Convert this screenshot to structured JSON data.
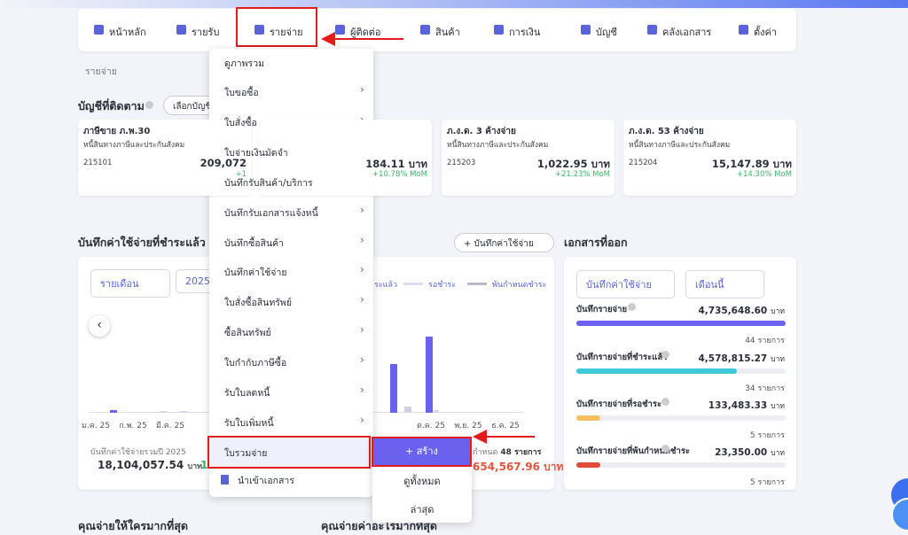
{
  "nav": {
    "items": [
      "หน้าหลัก",
      "รายรับ",
      "รายจ่าย",
      "ผู้ติดต่อ",
      "สินค้า",
      "การเงิน",
      "บัญชี",
      "คลังเอกสาร",
      "ตั้งค่า"
    ]
  },
  "breadcrumb": "รายจ่าย",
  "watch": {
    "title": "บัญชีที่ติดตาม",
    "select": "เลือกบัญชี",
    "cards": [
      {
        "title": "ภาษีขาย ภ.พ.30",
        "subtitle": "หนี้สินทางภาษีและประกันสังคม",
        "code": "215101",
        "amount": "209,072",
        "change": "+1"
      },
      {
        "amount": "184.11 บาท",
        "change": "+10.78% MoM"
      },
      {
        "title": "ภ.ง.ด. 3 ค้างจ่าย",
        "subtitle": "หนี้สินทางภาษีและประกันสังคม",
        "code": "215203",
        "amount": "1,022.95 บาท",
        "change": "+21.23% MoM"
      },
      {
        "title": "ภ.ง.ด. 53 ค้างจ่าย",
        "subtitle": "หนี้สินทางภาษีและประกันสังคม",
        "code": "215204",
        "amount": "15,147.89 บาท",
        "change": "+14.30% MoM"
      }
    ]
  },
  "expense": {
    "title": "บันทึกค่าใช้จ่ายที่ชำระแล้ว รอชำ",
    "add_button": "+ บันทึกค่าใช้จ่าย",
    "period": "รายเดือน",
    "year": "2025",
    "legend": [
      "ระแล้ว",
      "รอชำระ",
      "พ้นกำหนดชำระ"
    ],
    "months": [
      "ม.ค. 25",
      "ก.พ. 25",
      "มี.ค. 25",
      "ต.ค. 25",
      "พ.ย. 25",
      "ธ.ค. 25"
    ],
    "total_label": "บันทึกค่าใช้จ่ายรวมปี 2025",
    "total": "18,104,057.54",
    "unit": "บาท",
    "partial": "16",
    "overdue_label": "กำหนด",
    "overdue_count": "48 รายการ",
    "overdue_total": "654,567.96 บาท"
  },
  "docs": {
    "title": "เอกสารที่ออก",
    "type_select": "บันทึกค่าใช้จ่าย",
    "period_select": "เดือนนี้",
    "rows": [
      {
        "label": "บันทึกรายจ่าย",
        "amount": "4,735,648.60",
        "unit": "บาท",
        "count": "44 รายการ"
      },
      {
        "label": "บันทึกรายจ่ายที่ชำระแล้ว",
        "amount": "4,578,815.27",
        "unit": "บาท",
        "count": "34 รายการ"
      },
      {
        "label": "บันทึกรายจ่ายที่รอชำระ",
        "amount": "133,483.33",
        "unit": "บาท",
        "count": "5 รายการ"
      },
      {
        "label": "บันทึกรายจ่ายที่พ้นกำหนดชำระ",
        "amount": "23,350.00",
        "unit": "บาท",
        "count": "5 รายการ"
      }
    ]
  },
  "menu": {
    "items": [
      "ดูภาพรวม",
      "ใบขอซื้อ",
      "ใบสั่งซื้อ",
      "ใบจ่ายเงินมัดจำ",
      "บันทึกรับสินค้า/บริการ",
      "บันทึกรับเอกสารแจ้งหนี้",
      "บันทึกซื้อสินค้า",
      "บันทึกค่าใช้จ่าย",
      "ใบสั่งซื้อสินทรัพย์",
      "ซื้อสินทรัพย์",
      "ใบกำกับภาษีซื้อ",
      "รับใบลดหนี้",
      "รับใบเพิ่มหนี้",
      "ใบรวมจ่าย",
      "นำเข้าเอกสาร"
    ],
    "submenu": [
      "+ สร้าง",
      "ดูทั้งหมด",
      "ล่าสุด"
    ]
  },
  "bottom": [
    "คุณจ่ายให้ใครมากที่สุด",
    "คุณจ่ายค่าอะไรมากที่สุด"
  ]
}
